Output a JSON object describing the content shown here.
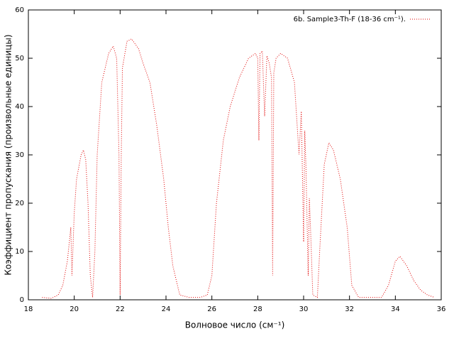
{
  "chart_data": {
    "type": "line",
    "xlabel": "Волновое число (см⁻¹)",
    "ylabel": "Коэффициент пропускания (произвольные единицы)",
    "x": [
      18.6,
      19.0,
      19.3,
      19.5,
      19.7,
      19.85,
      19.9,
      20.0,
      20.1,
      20.3,
      20.4,
      20.5,
      20.6,
      20.7,
      20.8,
      20.9,
      21.0,
      21.2,
      21.5,
      21.7,
      21.85,
      21.95,
      22.0,
      22.05,
      22.1,
      22.3,
      22.5,
      22.8,
      23.0,
      23.3,
      23.6,
      23.9,
      24.1,
      24.3,
      24.6,
      25.0,
      25.5,
      25.8,
      26.0,
      26.2,
      26.5,
      26.8,
      27.2,
      27.6,
      27.9,
      28.0,
      28.05,
      28.1,
      28.2,
      28.3,
      28.4,
      28.5,
      28.6,
      28.65,
      28.7,
      28.8,
      29.0,
      29.3,
      29.6,
      29.8,
      29.9,
      30.0,
      30.05,
      30.1,
      30.2,
      30.25,
      30.3,
      30.4,
      30.6,
      30.7,
      30.9,
      31.1,
      31.3,
      31.6,
      31.9,
      32.1,
      32.4,
      33.0,
      33.4,
      33.7,
      34.0,
      34.2,
      34.5,
      34.8,
      35.1,
      35.4,
      35.7
    ],
    "series": [
      {
        "name": "6b. Sample3-Th-F (18-36 cm⁻¹).",
        "color": "#e00000",
        "values": [
          0.5,
          0.3,
          1,
          3,
          8,
          15,
          5,
          18,
          25,
          30,
          31,
          29,
          20,
          5,
          0.5,
          10,
          30,
          45,
          51,
          52.5,
          50,
          30,
          1,
          30,
          48,
          53.5,
          54,
          52,
          49,
          45,
          36,
          25,
          15,
          7,
          1,
          0.5,
          0.5,
          1,
          5,
          20,
          33,
          40,
          46,
          50,
          51,
          50,
          33,
          51,
          51.5,
          38,
          50.5,
          49,
          46,
          5,
          47,
          50,
          51,
          50,
          45,
          30,
          39,
          12,
          35,
          28,
          5,
          21,
          15,
          1,
          0.5,
          10,
          28,
          32.5,
          31,
          25,
          15,
          3,
          0.5,
          0.5,
          0.5,
          3,
          8,
          9,
          7,
          4,
          2,
          1,
          0.5
        ]
      }
    ],
    "xlim": [
      18,
      36
    ],
    "xticks": [
      18,
      20,
      22,
      24,
      26,
      28,
      30,
      32,
      34,
      36
    ],
    "ylim": [
      0,
      60
    ],
    "yticks": [
      0,
      10,
      20,
      30,
      40,
      50,
      60
    ],
    "legend": "top right"
  }
}
